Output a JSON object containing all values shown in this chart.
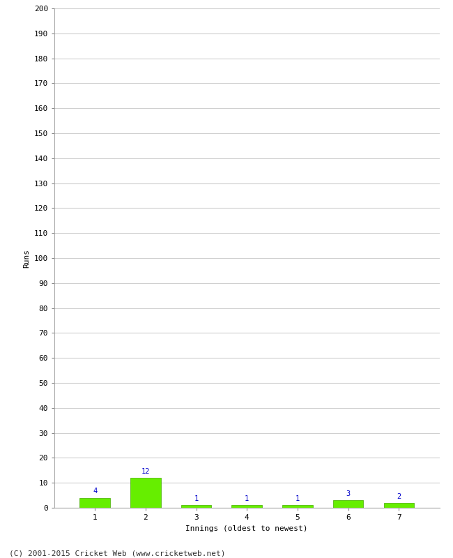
{
  "innings": [
    1,
    2,
    3,
    4,
    5,
    6,
    7
  ],
  "runs": [
    4,
    12,
    1,
    1,
    1,
    3,
    2
  ],
  "bar_color": "#66ee00",
  "bar_edge_color": "#44aa00",
  "label_color": "#0000cc",
  "xlabel": "Innings (oldest to newest)",
  "ylabel": "Runs",
  "ylim": [
    0,
    200
  ],
  "yticks": [
    0,
    10,
    20,
    30,
    40,
    50,
    60,
    70,
    80,
    90,
    100,
    110,
    120,
    130,
    140,
    150,
    160,
    170,
    180,
    190,
    200
  ],
  "xtick_labels": [
    "1",
    "2",
    "3",
    "4",
    "5",
    "6",
    "7"
  ],
  "footer": "(C) 2001-2015 Cricket Web (www.cricketweb.net)",
  "grid_color": "#d0d0d0",
  "bg_color": "#ffffff",
  "label_fontsize": 7.5,
  "axis_label_fontsize": 8,
  "tick_fontsize": 8,
  "footer_fontsize": 8
}
